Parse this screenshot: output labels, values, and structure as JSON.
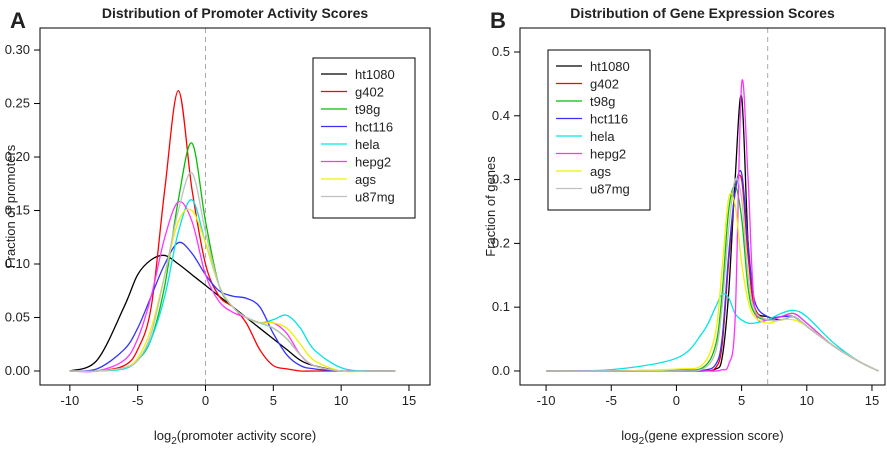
{
  "chart_data": [
    {
      "type": "line",
      "panel_label": "A",
      "title": "Distribution of Promoter Activity Scores",
      "x_label": {
        "prefix": "log",
        "sub": "2",
        "text": "(promoter activity score)"
      },
      "y_label": "Fraction of promoters",
      "xlim": [
        -12.2,
        16.55
      ],
      "ylim": [
        -0.0131,
        0.3206
      ],
      "xticks": [
        -10,
        -5,
        0,
        5,
        10,
        15
      ],
      "yticks": [
        {
          "value": 0,
          "label": "0.00"
        },
        {
          "value": 0.05,
          "label": "0.05"
        },
        {
          "value": 0.1,
          "label": "0.10"
        },
        {
          "value": 0.15,
          "label": "0.15"
        },
        {
          "value": 0.2,
          "label": "0.20"
        },
        {
          "value": 0.25,
          "label": "0.25"
        },
        {
          "value": 0.3,
          "label": "0.30"
        }
      ],
      "reference_line": 0,
      "legend": "top-right",
      "x": [
        -10,
        -8,
        -6,
        -5,
        -4,
        -3,
        -2,
        -1,
        0,
        1,
        2,
        3,
        4,
        5,
        6,
        7,
        8,
        10,
        12,
        14
      ],
      "series": [
        {
          "name": "ht1080",
          "color": "#000000",
          "values": [
            0,
            0.01,
            0.06,
            0.09,
            0.104,
            0.108,
            0.1,
            0.09,
            0.08,
            0.07,
            0.06,
            0.05,
            0.04,
            0.03,
            0.02,
            0.01,
            0.005,
            0,
            0,
            0
          ]
        },
        {
          "name": "g402",
          "color": "#ff0000",
          "values": [
            0,
            0,
            0.005,
            0.02,
            0.06,
            0.17,
            0.262,
            0.17,
            0.1,
            0.07,
            0.06,
            0.045,
            0.02,
            0.005,
            0.002,
            0,
            0,
            0,
            0,
            0
          ]
        },
        {
          "name": "t98g",
          "color": "#00c000",
          "values": [
            0,
            0,
            0.003,
            0.01,
            0.03,
            0.08,
            0.16,
            0.213,
            0.14,
            0.08,
            0.06,
            0.05,
            0.045,
            0.04,
            0.03,
            0.015,
            0.005,
            0,
            0,
            0
          ]
        },
        {
          "name": "hct116",
          "color": "#3333ff",
          "values": [
            0,
            0.002,
            0.02,
            0.04,
            0.07,
            0.1,
            0.12,
            0.11,
            0.09,
            0.075,
            0.07,
            0.068,
            0.06,
            0.035,
            0.015,
            0.005,
            0.002,
            0,
            0,
            0
          ]
        },
        {
          "name": "hela",
          "color": "#00e5e5",
          "values": [
            0,
            0,
            0.002,
            0.01,
            0.03,
            0.07,
            0.13,
            0.16,
            0.12,
            0.08,
            0.06,
            0.05,
            0.045,
            0.048,
            0.052,
            0.04,
            0.02,
            0.003,
            0,
            0
          ]
        },
        {
          "name": "hepg2",
          "color": "#ff33ff",
          "values": [
            0,
            0,
            0.01,
            0.03,
            0.07,
            0.125,
            0.158,
            0.14,
            0.09,
            0.065,
            0.055,
            0.05,
            0.045,
            0.045,
            0.035,
            0.015,
            0.005,
            0,
            0,
            0
          ]
        },
        {
          "name": "ags",
          "color": "#f0f000",
          "values": [
            0,
            0,
            0.003,
            0.012,
            0.04,
            0.09,
            0.14,
            0.15,
            0.12,
            0.08,
            0.06,
            0.05,
            0.045,
            0.045,
            0.04,
            0.025,
            0.01,
            0,
            0,
            0
          ]
        },
        {
          "name": "u87mg",
          "color": "#c0c0c0",
          "values": [
            0,
            0,
            0.003,
            0.01,
            0.035,
            0.09,
            0.15,
            0.185,
            0.13,
            0.08,
            0.06,
            0.05,
            0.045,
            0.04,
            0.03,
            0.015,
            0.005,
            0,
            0,
            0
          ]
        }
      ]
    },
    {
      "type": "line",
      "panel_label": "B",
      "title": "Distribution of Gene Expression Scores",
      "x_label": {
        "prefix": "log",
        "sub": "2",
        "text": "(gene expression score)"
      },
      "y_label": "Fraction of genes",
      "xlim": [
        -12.0,
        16.0
      ],
      "ylim": [
        -0.022,
        0.5376
      ],
      "xticks": [
        -10,
        -5,
        0,
        5,
        10,
        15
      ],
      "yticks": [
        {
          "value": 0,
          "label": "0.0"
        },
        0.1,
        0.2,
        0.3,
        0.4,
        0.5
      ],
      "reference_line": 7,
      "legend": "top-left",
      "x": [
        -10,
        -5,
        0,
        2,
        3,
        3.5,
        4,
        4.5,
        5,
        5.5,
        6,
        7,
        8,
        9,
        10,
        12,
        14,
        15.5
      ],
      "series": [
        {
          "name": "ht1080",
          "color": "#000000",
          "values": [
            0,
            0,
            0,
            0,
            0.003,
            0.02,
            0.12,
            0.3,
            0.43,
            0.2,
            0.1,
            0.085,
            0.08,
            0.085,
            0.07,
            0.04,
            0.015,
            0
          ]
        },
        {
          "name": "g402",
          "color": "#ff0000",
          "values": [
            0,
            0,
            0,
            0,
            0.005,
            0.04,
            0.17,
            0.28,
            0.3,
            0.18,
            0.1,
            0.08,
            0.085,
            0.085,
            0.07,
            0.04,
            0.015,
            0
          ]
        },
        {
          "name": "t98g",
          "color": "#00c000",
          "values": [
            0,
            0,
            0.002,
            0.005,
            0.04,
            0.12,
            0.25,
            0.29,
            0.24,
            0.13,
            0.09,
            0.08,
            0.085,
            0.09,
            0.075,
            0.04,
            0.015,
            0
          ]
        },
        {
          "name": "hct116",
          "color": "#3333ff",
          "values": [
            0,
            0,
            0,
            0.001,
            0.01,
            0.05,
            0.18,
            0.28,
            0.31,
            0.2,
            0.11,
            0.085,
            0.085,
            0.085,
            0.07,
            0.04,
            0.015,
            0
          ]
        },
        {
          "name": "hela",
          "color": "#00e5e5",
          "values": [
            0,
            0.002,
            0.02,
            0.06,
            0.1,
            0.12,
            0.115,
            0.09,
            0.08,
            0.075,
            0.075,
            0.08,
            0.09,
            0.095,
            0.085,
            0.045,
            0.015,
            0
          ]
        },
        {
          "name": "hepg2",
          "color": "#ff33ff",
          "values": [
            0,
            0,
            0,
            0,
            0,
            0.002,
            0.01,
            0.08,
            0.45,
            0.3,
            0.1,
            0.08,
            0.085,
            0.09,
            0.075,
            0.04,
            0.015,
            0
          ]
        },
        {
          "name": "ags",
          "color": "#f0f000",
          "values": [
            0,
            0,
            0.003,
            0.01,
            0.06,
            0.16,
            0.27,
            0.26,
            0.17,
            0.11,
            0.085,
            0.075,
            0.08,
            0.08,
            0.07,
            0.04,
            0.015,
            0
          ]
        },
        {
          "name": "u87mg",
          "color": "#c0c0c0",
          "values": [
            0,
            0,
            0,
            0.003,
            0.03,
            0.1,
            0.22,
            0.3,
            0.27,
            0.15,
            0.095,
            0.08,
            0.08,
            0.085,
            0.07,
            0.04,
            0.015,
            0
          ]
        }
      ]
    }
  ]
}
